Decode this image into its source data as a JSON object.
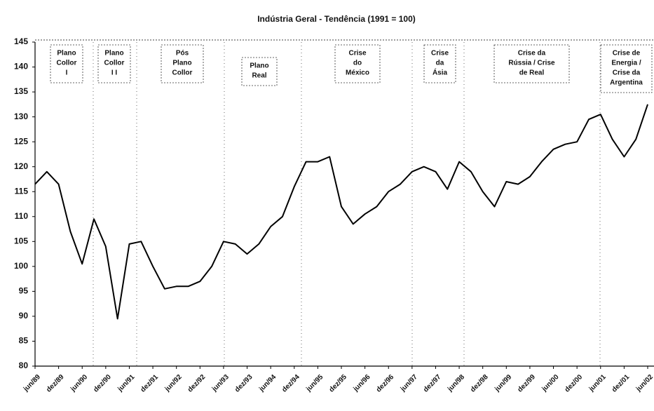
{
  "chart_data": {
    "type": "line",
    "title": "Indústria Geral - Tendência (1991 = 100)",
    "categories": [
      "jun/89",
      null,
      "dez/89",
      null,
      "jun/90",
      null,
      "dez/90",
      null,
      "jun/91",
      null,
      "dez/91",
      null,
      "jun/92",
      null,
      "dez/92",
      null,
      "jun/93",
      null,
      "dez/93",
      null,
      "jun/94",
      null,
      "dez/94",
      null,
      "jun/95",
      null,
      "dez/95",
      null,
      "jun/96",
      null,
      "dez/96",
      null,
      "jun/97",
      null,
      "dez/97",
      null,
      "jun/98",
      null,
      "dez/98",
      null,
      "jun/99",
      null,
      "dez/99",
      null,
      "jun/00",
      null,
      "dez/00",
      null,
      "jun/01",
      null,
      "dez/01",
      null,
      "jun/02"
    ],
    "values": [
      116.5,
      119,
      116.5,
      107,
      100.5,
      109.5,
      104,
      89.5,
      104.5,
      105,
      100,
      95.5,
      96,
      96,
      97,
      100,
      105,
      104.5,
      102.5,
      104.5,
      108,
      110,
      116,
      121,
      121,
      122,
      112,
      108.5,
      110.5,
      112,
      115,
      116.5,
      119,
      120,
      119,
      115.5,
      121,
      119,
      115,
      112,
      117,
      116.5,
      118,
      121,
      123.5,
      124.5,
      125,
      129.5,
      130.5,
      125.5,
      122,
      125.5,
      132.5
    ],
    "color": "#000000",
    "ylim": [
      80,
      145
    ],
    "yticks": [
      80,
      85,
      90,
      95,
      100,
      105,
      110,
      115,
      120,
      125,
      130,
      135,
      140,
      145
    ],
    "grid": false,
    "annotations": [
      [
        "Plano",
        "Collor",
        "I"
      ],
      [
        "Plano",
        "Collor",
        "I I"
      ],
      [
        "Pós",
        "Plano",
        "Collor"
      ],
      [
        "Plano",
        "Real"
      ],
      [
        "Crise",
        "do",
        "México"
      ],
      [
        "Crise",
        "da",
        "Ásia"
      ],
      [
        "Crise da",
        "Rússia / Crise",
        "de Real"
      ],
      [
        "Crise de",
        "Energia /",
        "Crise da",
        "Argentina"
      ]
    ]
  }
}
